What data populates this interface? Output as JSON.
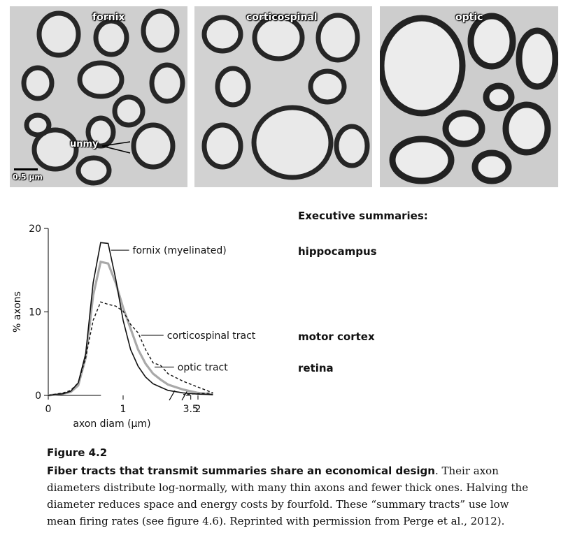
{
  "micrographs": {
    "panels": [
      {
        "label": "fornix"
      },
      {
        "label": "corticospinal"
      },
      {
        "label": "optic"
      }
    ],
    "annotation": "unmy",
    "scale_bar": "0.5 µm"
  },
  "summaries": {
    "heading": "Executive summaries:",
    "items": [
      "hippocampus",
      "motor cortex",
      "retina"
    ]
  },
  "chart_data": {
    "type": "line",
    "title": "",
    "xlabel": "axon diam (µm)",
    "ylabel": "% axons",
    "xlim": [
      0,
      3.5
    ],
    "ylim": [
      0,
      20
    ],
    "x_axis_break": [
      2.2,
      3.4
    ],
    "xticks": [
      {
        "value": 0,
        "label": "0"
      },
      {
        "value": 1,
        "label": "1"
      },
      {
        "value": 2,
        "label": "2"
      },
      {
        "value": 3.5,
        "label": "3.5"
      }
    ],
    "yticks": [
      {
        "value": 0,
        "label": "0"
      },
      {
        "value": 10,
        "label": "10"
      },
      {
        "value": 20,
        "label": "20"
      }
    ],
    "series": [
      {
        "name": "fornix (myelinated)",
        "style": "solid-black",
        "points": [
          [
            0,
            0
          ],
          [
            0.2,
            0.2
          ],
          [
            0.3,
            0.5
          ],
          [
            0.4,
            1.5
          ],
          [
            0.5,
            5
          ],
          [
            0.6,
            13.5
          ],
          [
            0.7,
            18.3
          ],
          [
            0.8,
            18.2
          ],
          [
            0.9,
            14
          ],
          [
            1.0,
            9
          ],
          [
            1.1,
            5.5
          ],
          [
            1.2,
            3.5
          ],
          [
            1.3,
            2.2
          ],
          [
            1.4,
            1.4
          ],
          [
            1.5,
            1.0
          ],
          [
            1.6,
            0.6
          ],
          [
            1.8,
            0.3
          ],
          [
            2.0,
            0.15
          ],
          [
            2.2,
            0.1
          ]
        ]
      },
      {
        "name": "corticospinal tract",
        "style": "dashed-black",
        "points": [
          [
            0,
            0
          ],
          [
            0.2,
            0.3
          ],
          [
            0.3,
            0.6
          ],
          [
            0.4,
            1.5
          ],
          [
            0.5,
            4.5
          ],
          [
            0.6,
            9
          ],
          [
            0.7,
            11.2
          ],
          [
            0.8,
            10.9
          ],
          [
            0.9,
            10.7
          ],
          [
            1.0,
            10.1
          ],
          [
            1.1,
            8.5
          ],
          [
            1.2,
            7.5
          ],
          [
            1.3,
            5.5
          ],
          [
            1.4,
            3.9
          ],
          [
            1.5,
            3.6
          ],
          [
            1.6,
            2.6
          ],
          [
            1.8,
            1.7
          ],
          [
            2.0,
            1.0
          ],
          [
            2.2,
            0.3
          ],
          [
            3.4,
            0.1
          ]
        ]
      },
      {
        "name": "optic tract",
        "style": "solid-gray",
        "points": [
          [
            0,
            0
          ],
          [
            0.2,
            0.2
          ],
          [
            0.3,
            0.4
          ],
          [
            0.4,
            1.2
          ],
          [
            0.5,
            4.5
          ],
          [
            0.6,
            12
          ],
          [
            0.7,
            16
          ],
          [
            0.8,
            15.8
          ],
          [
            0.9,
            13.5
          ],
          [
            1.0,
            10.5
          ],
          [
            1.1,
            8
          ],
          [
            1.2,
            5.5
          ],
          [
            1.3,
            3.8
          ],
          [
            1.4,
            2.6
          ],
          [
            1.5,
            1.9
          ],
          [
            1.6,
            1.3
          ],
          [
            1.8,
            0.7
          ],
          [
            2.0,
            0.3
          ],
          [
            2.2,
            0.1
          ]
        ]
      }
    ]
  },
  "caption": {
    "figure_number": "Figure 4.2",
    "title": "Fiber tracts that transmit summaries share an economical design",
    "body": ". Their axon diameters distribute log-normally, with many thin axons and fewer thick ones. Halving the diameter reduces space and energy costs by fourfold. These “summary tracts” use low mean firing rates (see figure 4.6). Reprinted with permission from Perge et al., 2012)."
  }
}
